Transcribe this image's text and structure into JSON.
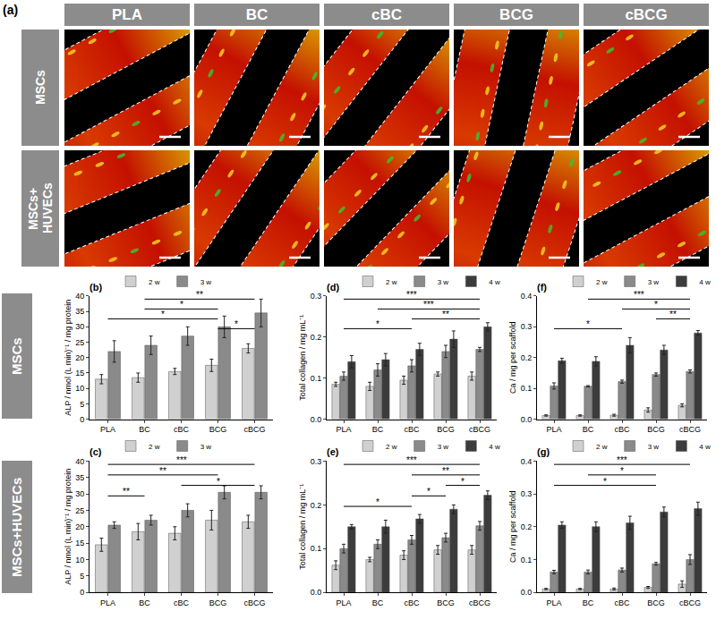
{
  "image_panel": {
    "label": "(a)",
    "columns": [
      "PLA",
      "BC",
      "cBC",
      "BCG",
      "cBCG"
    ],
    "rows": [
      "MSCs",
      "MSCs+ HUVECs"
    ]
  },
  "chart_rows": [
    "MSCs",
    "MSCs+HUVECs"
  ],
  "chart_data": [
    {
      "type": "bar",
      "title": "(b)",
      "y_label": "ALP / nmol (L min)⁻¹ / mg protein",
      "categories": [
        "PLA",
        "BC",
        "cBC",
        "BCG",
        "cBCG"
      ],
      "series": [
        {
          "name": "2 w",
          "color": "#d0d0d0",
          "values": [
            13,
            13.5,
            15.5,
            17.5,
            23
          ],
          "errors": [
            1.5,
            1.5,
            1,
            2,
            1.5
          ]
        },
        {
          "name": "3 w",
          "color": "#8a8a8a",
          "values": [
            22,
            24,
            27,
            30,
            34.5
          ],
          "errors": [
            3.5,
            3,
            3,
            3.5,
            4.5
          ]
        }
      ],
      "ylim": [
        0,
        40
      ],
      "yticks": [
        0,
        5,
        10,
        15,
        20,
        25,
        30,
        35,
        40
      ],
      "grid": false,
      "legend": "top left",
      "annotations": [
        {
          "from": "BC",
          "to": "cBCG",
          "text": "**"
        },
        {
          "from": "BC",
          "to": "BCG",
          "text": "*"
        },
        {
          "from": "PLA",
          "to": "BCG",
          "text": "*"
        },
        {
          "from": "BCG",
          "to": "cBCG",
          "text": "*"
        }
      ]
    },
    {
      "type": "bar",
      "title": "(c)",
      "y_label": "ALP / nmol (L min)⁻¹ / mg protein",
      "categories": [
        "PLA",
        "BC",
        "cBC",
        "BCG",
        "cBCG"
      ],
      "series": [
        {
          "name": "2 w",
          "color": "#d0d0d0",
          "values": [
            14.5,
            18.5,
            18,
            22,
            21.5
          ],
          "errors": [
            2,
            2.5,
            2,
            3,
            2
          ]
        },
        {
          "name": "3 w",
          "color": "#8a8a8a",
          "values": [
            20.5,
            22,
            25,
            30.5,
            30.5
          ],
          "errors": [
            1,
            1.5,
            2,
            2,
            2
          ]
        }
      ],
      "ylim": [
        0,
        40
      ],
      "yticks": [
        0,
        5,
        10,
        15,
        20,
        25,
        30,
        35,
        40
      ],
      "grid": false,
      "legend": "top left",
      "annotations": [
        {
          "from": "PLA",
          "to": "cBCG",
          "text": "***"
        },
        {
          "from": "PLA",
          "to": "BCG",
          "text": "**"
        },
        {
          "from": "cBC",
          "to": "cBCG",
          "text": "*"
        },
        {
          "from": "PLA",
          "to": "BC",
          "text": "**"
        }
      ]
    },
    {
      "type": "bar",
      "title": "(d)",
      "y_label": "Total collagen / mg mL⁻¹",
      "categories": [
        "PLA",
        "BC",
        "cBC",
        "BCG",
        "cBCG"
      ],
      "series": [
        {
          "name": "2 w",
          "color": "#d0d0d0",
          "values": [
            0.085,
            0.08,
            0.095,
            0.11,
            0.105
          ],
          "errors": [
            0.005,
            0.01,
            0.01,
            0.005,
            0.01
          ]
        },
        {
          "name": "3 w",
          "color": "#8a8a8a",
          "values": [
            0.105,
            0.12,
            0.13,
            0.165,
            0.17
          ],
          "errors": [
            0.01,
            0.015,
            0.015,
            0.015,
            0.005
          ]
        },
        {
          "name": "4 w",
          "color": "#3c3c3c",
          "values": [
            0.14,
            0.145,
            0.17,
            0.195,
            0.225
          ],
          "errors": [
            0.015,
            0.015,
            0.015,
            0.02,
            0.01
          ]
        }
      ],
      "ylim": [
        0,
        0.3
      ],
      "yticks": [
        {
          "value": 0,
          "label": "0.0"
        },
        {
          "value": 0.1,
          "label": "0.1"
        },
        {
          "value": 0.2,
          "label": "0.2"
        },
        {
          "value": 0.3,
          "label": "0.3"
        }
      ],
      "grid": false,
      "legend": "top left",
      "annotations": [
        {
          "from": "PLA",
          "to": "cBCG",
          "text": "***"
        },
        {
          "from": "BC",
          "to": "cBCG",
          "text": "***"
        },
        {
          "from": "cBC",
          "to": "cBCG",
          "text": "**"
        },
        {
          "from": "PLA",
          "to": "cBC",
          "text": "*"
        }
      ]
    },
    {
      "type": "bar",
      "title": "(e)",
      "y_label": "Total collagen / mg mL⁻¹",
      "categories": [
        "PLA",
        "BC",
        "cBC",
        "BCG",
        "cBCG"
      ],
      "series": [
        {
          "name": "2 w",
          "color": "#d0d0d0",
          "values": [
            0.062,
            0.075,
            0.085,
            0.097,
            0.097
          ],
          "errors": [
            0.01,
            0.005,
            0.01,
            0.01,
            0.01
          ]
        },
        {
          "name": "3 w",
          "color": "#8a8a8a",
          "values": [
            0.1,
            0.11,
            0.12,
            0.125,
            0.152
          ],
          "errors": [
            0.01,
            0.01,
            0.01,
            0.01,
            0.01
          ]
        },
        {
          "name": "4 w",
          "color": "#3c3c3c",
          "values": [
            0.15,
            0.15,
            0.168,
            0.19,
            0.222
          ],
          "errors": [
            0.005,
            0.015,
            0.01,
            0.01,
            0.01
          ]
        }
      ],
      "ylim": [
        0,
        0.3
      ],
      "yticks": [
        {
          "value": 0,
          "label": "0.0"
        },
        {
          "value": 0.1,
          "label": "0.1"
        },
        {
          "value": 0.2,
          "label": "0.2"
        },
        {
          "value": 0.3,
          "label": "0.3"
        }
      ],
      "grid": false,
      "legend": "top left",
      "annotations": [
        {
          "from": "PLA",
          "to": "cBCG",
          "text": "***"
        },
        {
          "from": "cBC",
          "to": "cBCG",
          "text": "**"
        },
        {
          "from": "BCG",
          "to": "cBCG",
          "text": "*"
        },
        {
          "from": "cBC",
          "to": "BCG",
          "text": "*"
        },
        {
          "from": "PLA",
          "to": "cBC",
          "text": "*"
        }
      ]
    },
    {
      "type": "bar",
      "title": "(f)",
      "y_label": "Ca / mg per scaffold",
      "categories": [
        "PLA",
        "BC",
        "cBC",
        "BCG",
        "cBCG"
      ],
      "series": [
        {
          "name": "2 w",
          "color": "#d0d0d0",
          "values": [
            0.012,
            0.012,
            0.013,
            0.03,
            0.045
          ],
          "errors": [
            0.002,
            0.002,
            0.003,
            0.007,
            0.005
          ]
        },
        {
          "name": "3 w",
          "color": "#8a8a8a",
          "values": [
            0.108,
            0.107,
            0.122,
            0.145,
            0.155
          ],
          "errors": [
            0.01,
            0.002,
            0.005,
            0.005,
            0.005
          ]
        },
        {
          "name": "4 w",
          "color": "#3c3c3c",
          "values": [
            0.19,
            0.188,
            0.24,
            0.225,
            0.28
          ],
          "errors": [
            0.008,
            0.015,
            0.025,
            0.015,
            0.008
          ]
        }
      ],
      "ylim": [
        0,
        0.4
      ],
      "yticks": [
        {
          "value": 0,
          "label": "0.0"
        },
        {
          "value": 0.1,
          "label": "0.1"
        },
        {
          "value": 0.2,
          "label": "0.2"
        },
        {
          "value": 0.3,
          "label": "0.3"
        },
        {
          "value": 0.4,
          "label": "0.4"
        }
      ],
      "grid": false,
      "legend": "top left",
      "annotations": [
        {
          "from": "BC",
          "to": "cBCG",
          "text": "***"
        },
        {
          "from": "cBC",
          "to": "cBCG",
          "text": "*"
        },
        {
          "from": "BCG",
          "to": "cBCG",
          "text": "**"
        },
        {
          "from": "PLA",
          "to": "cBC",
          "text": "*"
        }
      ]
    },
    {
      "type": "bar",
      "title": "(g)",
      "y_label": "Ca / mg per scaffold",
      "categories": [
        "PLA",
        "BC",
        "cBC",
        "BCG",
        "cBCG"
      ],
      "series": [
        {
          "name": "2 w",
          "color": "#d0d0d0",
          "values": [
            0.01,
            0.01,
            0.01,
            0.015,
            0.025
          ],
          "errors": [
            0.002,
            0.002,
            0.003,
            0.003,
            0.01
          ]
        },
        {
          "name": "3 w",
          "color": "#8a8a8a",
          "values": [
            0.062,
            0.062,
            0.068,
            0.087,
            0.1
          ],
          "errors": [
            0.005,
            0.006,
            0.006,
            0.004,
            0.015
          ]
        },
        {
          "name": "4 w",
          "color": "#3c3c3c",
          "values": [
            0.205,
            0.2,
            0.212,
            0.245,
            0.255
          ],
          "errors": [
            0.01,
            0.015,
            0.02,
            0.015,
            0.02
          ]
        }
      ],
      "ylim": [
        0,
        0.4
      ],
      "yticks": [
        {
          "value": 0,
          "label": "0.0"
        },
        {
          "value": 0.1,
          "label": "0.1"
        },
        {
          "value": 0.2,
          "label": "0.2"
        },
        {
          "value": 0.3,
          "label": "0.3"
        },
        {
          "value": 0.4,
          "label": "0.4"
        }
      ],
      "grid": false,
      "legend": "top left",
      "annotations": [
        {
          "from": "PLA",
          "to": "cBCG",
          "text": "***"
        },
        {
          "from": "BC",
          "to": "BCG",
          "text": "*"
        },
        {
          "from": "PLA",
          "to": "BCG",
          "text": "*"
        }
      ]
    }
  ]
}
